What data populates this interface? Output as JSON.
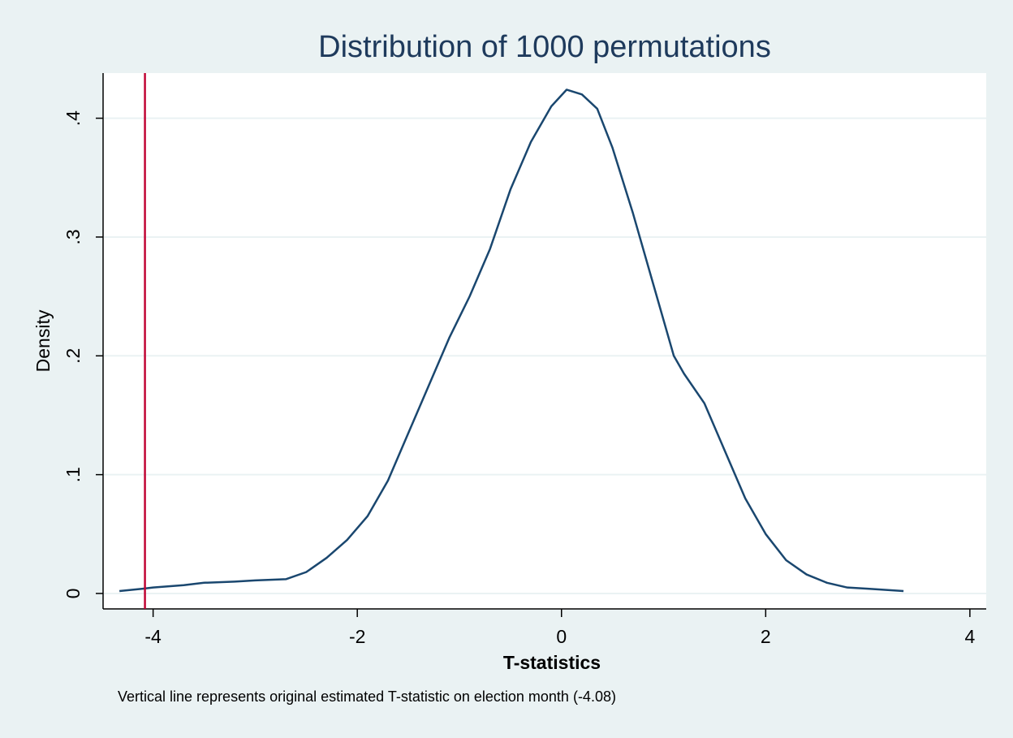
{
  "chart_data": {
    "type": "line",
    "title": "Distribution of 1000 permutations",
    "xlabel": "T-statistics",
    "ylabel": "Density",
    "note": "Vertical line represents original estimated T-statistic on election month (-4.08)",
    "x": [
      -4.33,
      -4.1,
      -4.0,
      -3.7,
      -3.5,
      -3.2,
      -3.0,
      -2.7,
      -2.5,
      -2.3,
      -2.1,
      -1.9,
      -1.7,
      -1.5,
      -1.3,
      -1.1,
      -0.9,
      -0.7,
      -0.5,
      -0.3,
      -0.1,
      0.05,
      0.2,
      0.35,
      0.5,
      0.7,
      0.9,
      1.1,
      1.2,
      1.4,
      1.6,
      1.8,
      2.0,
      2.2,
      2.4,
      2.6,
      2.8,
      3.0,
      3.35
    ],
    "values": [
      0.002,
      0.004,
      0.005,
      0.007,
      0.009,
      0.01,
      0.011,
      0.012,
      0.018,
      0.03,
      0.045,
      0.065,
      0.095,
      0.135,
      0.175,
      0.215,
      0.25,
      0.29,
      0.34,
      0.38,
      0.41,
      0.424,
      0.42,
      0.408,
      0.375,
      0.32,
      0.26,
      0.2,
      0.185,
      0.16,
      0.12,
      0.08,
      0.05,
      0.028,
      0.016,
      0.009,
      0.005,
      0.004,
      0.002
    ],
    "color": "#1a476f",
    "xline": {
      "value": -4.08,
      "color": "#c10534"
    },
    "xlim": [
      -4.49,
      4.16
    ],
    "ylim": [
      -0.013,
      0.438
    ],
    "xticks": [
      -4,
      -2,
      0,
      2,
      4
    ],
    "yticks": [
      0,
      {
        "value": 0.1,
        "label": ".1"
      },
      {
        "value": 0.2,
        "label": ".2"
      },
      {
        "value": 0.3,
        "label": ".3"
      },
      {
        "value": 0.4,
        "label": ".4"
      }
    ],
    "grid": true
  }
}
